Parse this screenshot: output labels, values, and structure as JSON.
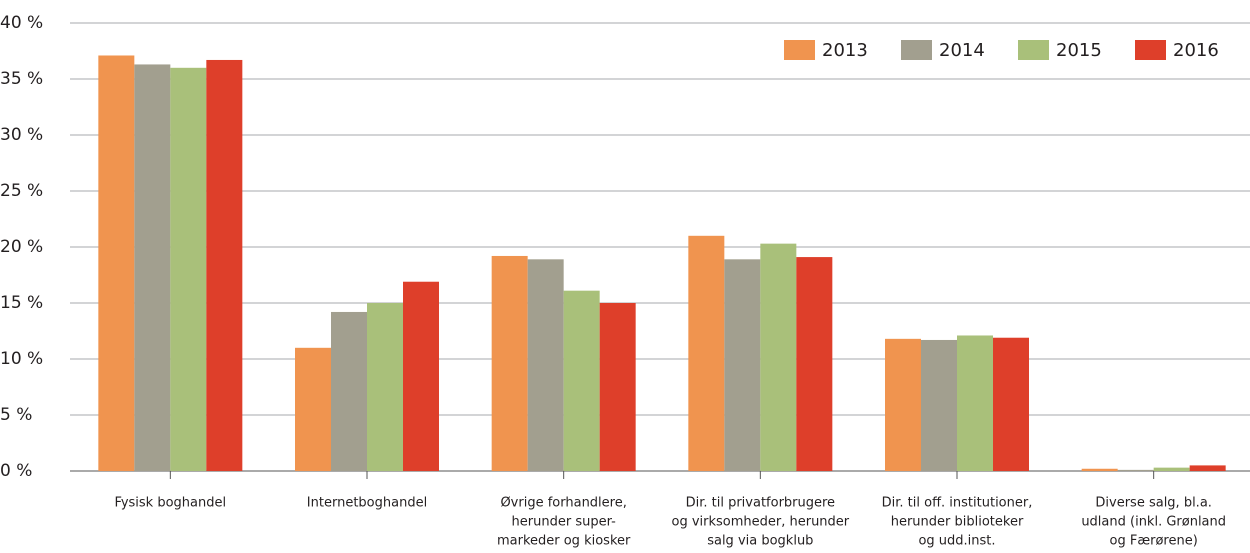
{
  "chart_data": {
    "type": "bar",
    "categories": [
      [
        "Fysisk boghandel"
      ],
      [
        "Internetboghandel"
      ],
      [
        "Øvrige forhandlere,",
        "herunder super-",
        "markeder og kiosker"
      ],
      [
        "Dir. til privatforbrugere",
        "og virksomheder, herunder",
        "salg via bogklub"
      ],
      [
        "Dir. til off. institutioner,",
        "herunder biblioteker",
        "og udd.inst."
      ],
      [
        "Diverse salg, bl.a.",
        "udland (inkl. Grønland",
        "og Færørene)"
      ]
    ],
    "series": [
      {
        "name": "2013",
        "color": "#f0944f",
        "values": [
          37.1,
          11.0,
          19.2,
          21.0,
          11.8,
          0.2
        ]
      },
      {
        "name": "2014",
        "color": "#a29f8f",
        "values": [
          36.3,
          14.2,
          18.9,
          18.9,
          11.7,
          0.1
        ]
      },
      {
        "name": "2015",
        "color": "#a9c07a",
        "values": [
          36.0,
          15.0,
          16.1,
          20.3,
          12.1,
          0.3
        ]
      },
      {
        "name": "2016",
        "color": "#de3f2a",
        "values": [
          36.7,
          16.9,
          15.0,
          19.1,
          11.9,
          0.5
        ]
      }
    ],
    "ylim": [
      0,
      40
    ],
    "yticks": [
      {
        "value": 0,
        "label": "0 %"
      },
      {
        "value": 5,
        "label": "5 %"
      },
      {
        "value": 10,
        "label": "10 %"
      },
      {
        "value": 15,
        "label": "15 %"
      },
      {
        "value": 20,
        "label": "20 %"
      },
      {
        "value": 25,
        "label": "25 %"
      },
      {
        "value": 30,
        "label": "30 %"
      },
      {
        "value": 35,
        "label": "35 %"
      },
      {
        "value": 40,
        "label": "40 %"
      }
    ],
    "grid": true,
    "legend": "upper right"
  }
}
